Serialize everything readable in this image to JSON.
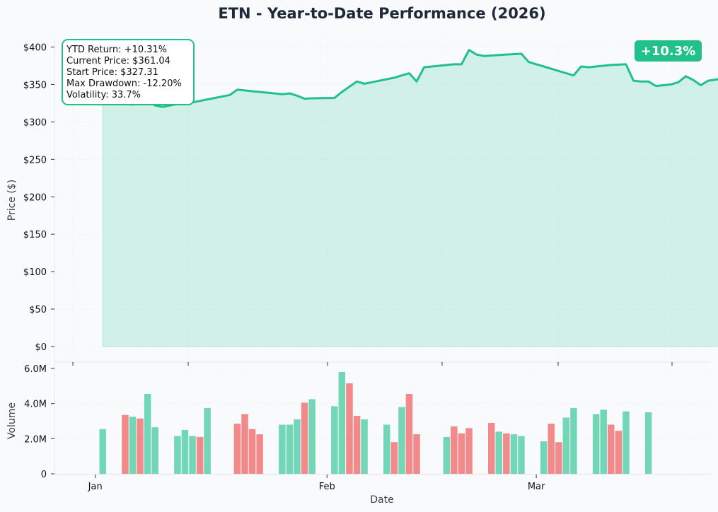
{
  "chart_data": {
    "type": "line",
    "title": "ETN - Year-to-Date Performance (2026)",
    "xlabel": "Date",
    "ylabel": "Price ($)",
    "ylabel_volume": "Volume",
    "ylim": [
      0,
      420
    ],
    "volume_ylim": [
      0,
      6000000
    ],
    "y_ticks": [
      "$0",
      "$50",
      "$100",
      "$150",
      "$200",
      "$250",
      "$300",
      "$350",
      "$400"
    ],
    "y_tick_values": [
      0,
      50,
      100,
      150,
      200,
      250,
      300,
      350,
      400
    ],
    "volume_ticks": [
      "0",
      "2.0M",
      "4.0M",
      "6.0M"
    ],
    "volume_tick_values": [
      0,
      2000000,
      4000000,
      6000000
    ],
    "x_ticks": [
      "Jan",
      "Feb",
      "Mar"
    ],
    "x_tick_dates": [
      "2026-01-01",
      "2026-02-01",
      "2026-03-01"
    ],
    "x_range": [
      "2025-12-29",
      "2026-03-22"
    ],
    "grid": true,
    "series": [
      {
        "color": "#22c08a",
        "points": [
          [
            "2026-01-02",
            327.31
          ],
          [
            "2026-01-05",
            324.5
          ],
          [
            "2026-01-06",
            323.0
          ],
          [
            "2026-01-07",
            330.0
          ],
          [
            "2026-01-08",
            328.0
          ],
          [
            "2026-01-09",
            322.0
          ],
          [
            "2026-01-10",
            320.0
          ],
          [
            "2026-01-12",
            324.0
          ],
          [
            "2026-01-13",
            330.0
          ],
          [
            "2026-01-14",
            326.0
          ],
          [
            "2026-01-15",
            328.0
          ],
          [
            "2026-01-16",
            330.0
          ],
          [
            "2026-01-19",
            336.0
          ],
          [
            "2026-01-20",
            343.0
          ],
          [
            "2026-01-21",
            342.0
          ],
          [
            "2026-01-22",
            341.0
          ],
          [
            "2026-01-23",
            340.0
          ],
          [
            "2026-01-26",
            337.0
          ],
          [
            "2026-01-27",
            338.0
          ],
          [
            "2026-01-28",
            335.0
          ],
          [
            "2026-01-29",
            331.0
          ],
          [
            "2026-01-30",
            331.5
          ],
          [
            "2026-02-02",
            332.0
          ],
          [
            "2026-02-03",
            340.0
          ],
          [
            "2026-02-05",
            354.0
          ],
          [
            "2026-02-06",
            351.0
          ],
          [
            "2026-02-07",
            353.0
          ],
          [
            "2026-02-09",
            357.0
          ],
          [
            "2026-02-10",
            359.0
          ],
          [
            "2026-02-11",
            362.0
          ],
          [
            "2026-02-12",
            365.0
          ],
          [
            "2026-02-13",
            354.0
          ],
          [
            "2026-02-14",
            373.0
          ],
          [
            "2026-02-16",
            375.0
          ],
          [
            "2026-02-17",
            376.0
          ],
          [
            "2026-02-18",
            377.0
          ],
          [
            "2026-02-19",
            377.0
          ],
          [
            "2026-02-20",
            396.0
          ],
          [
            "2026-02-21",
            390.0
          ],
          [
            "2026-02-22",
            388.0
          ],
          [
            "2026-02-25",
            390.0
          ],
          [
            "2026-02-27",
            391.0
          ],
          [
            "2026-02-28",
            380.0
          ],
          [
            "2026-03-01",
            377.0
          ],
          [
            "2026-03-02",
            374.0
          ],
          [
            "2026-03-03",
            371.0
          ],
          [
            "2026-03-06",
            362.0
          ],
          [
            "2026-03-07",
            374.0
          ],
          [
            "2026-03-08",
            373.0
          ],
          [
            "2026-03-09",
            374.0
          ],
          [
            "2026-03-11",
            376.0
          ],
          [
            "2026-03-13",
            377.0
          ],
          [
            "2026-03-14",
            355.0
          ],
          [
            "2026-03-15",
            354.0
          ],
          [
            "2026-03-16",
            354.0
          ],
          [
            "2026-03-17",
            348.0
          ],
          [
            "2026-03-19",
            350.0
          ],
          [
            "2026-03-20",
            353.0
          ],
          [
            "2026-03-21",
            361.0
          ],
          [
            "2026-03-22",
            356.0
          ],
          [
            "2026-03-23",
            349.0
          ],
          [
            "2026-03-24",
            355.0
          ],
          [
            "2026-03-26",
            358.0
          ],
          [
            "2026-03-27",
            361.04
          ]
        ]
      }
    ],
    "volume": {
      "up_color": "#22c08a",
      "down_color": "#ef4444",
      "bars": [
        [
          "2026-01-02",
          2550000,
          "up"
        ],
        [
          "2026-01-05",
          3350000,
          "down"
        ],
        [
          "2026-01-06",
          3250000,
          "up"
        ],
        [
          "2026-01-07",
          3150000,
          "down"
        ],
        [
          "2026-01-08",
          4550000,
          "up"
        ],
        [
          "2026-01-09",
          2650000,
          "up"
        ],
        [
          "2026-01-12",
          2150000,
          "up"
        ],
        [
          "2026-01-13",
          2500000,
          "up"
        ],
        [
          "2026-01-14",
          2150000,
          "up"
        ],
        [
          "2026-01-15",
          2100000,
          "down"
        ],
        [
          "2026-01-16",
          3750000,
          "up"
        ],
        [
          "2026-01-20",
          2850000,
          "down"
        ],
        [
          "2026-01-21",
          3400000,
          "down"
        ],
        [
          "2026-01-22",
          2550000,
          "down"
        ],
        [
          "2026-01-23",
          2250000,
          "down"
        ],
        [
          "2026-01-26",
          2800000,
          "up"
        ],
        [
          "2026-01-27",
          2800000,
          "up"
        ],
        [
          "2026-01-28",
          3100000,
          "up"
        ],
        [
          "2026-01-29",
          4050000,
          "down"
        ],
        [
          "2026-01-30",
          4250000,
          "up"
        ],
        [
          "2026-02-02",
          3850000,
          "up"
        ],
        [
          "2026-02-03",
          5800000,
          "up"
        ],
        [
          "2026-02-04",
          5150000,
          "down"
        ],
        [
          "2026-02-05",
          3300000,
          "down"
        ],
        [
          "2026-02-06",
          3100000,
          "up"
        ],
        [
          "2026-02-09",
          2800000,
          "up"
        ],
        [
          "2026-02-10",
          1800000,
          "down"
        ],
        [
          "2026-02-11",
          3800000,
          "up"
        ],
        [
          "2026-02-12",
          4550000,
          "down"
        ],
        [
          "2026-02-13",
          2250000,
          "down"
        ],
        [
          "2026-02-17",
          2100000,
          "up"
        ],
        [
          "2026-02-18",
          2700000,
          "down"
        ],
        [
          "2026-02-19",
          2300000,
          "down"
        ],
        [
          "2026-02-20",
          2600000,
          "down"
        ],
        [
          "2026-02-23",
          2900000,
          "down"
        ],
        [
          "2026-02-24",
          2400000,
          "up"
        ],
        [
          "2026-02-25",
          2300000,
          "down"
        ],
        [
          "2026-02-26",
          2250000,
          "up"
        ],
        [
          "2026-02-27",
          2150000,
          "up"
        ],
        [
          "2026-03-02",
          1850000,
          "up"
        ],
        [
          "2026-03-03",
          2850000,
          "down"
        ],
        [
          "2026-03-04",
          1800000,
          "down"
        ],
        [
          "2026-03-05",
          3200000,
          "up"
        ],
        [
          "2026-03-06",
          3750000,
          "up"
        ],
        [
          "2026-03-09",
          3400000,
          "up"
        ],
        [
          "2026-03-10",
          3650000,
          "up"
        ],
        [
          "2026-03-11",
          2800000,
          "down"
        ],
        [
          "2026-03-12",
          2450000,
          "down"
        ],
        [
          "2026-03-13",
          3550000,
          "up"
        ],
        [
          "2026-03-16",
          3500000,
          "up"
        ]
      ]
    }
  },
  "stats": {
    "lines": [
      "YTD Return: +10.31%",
      "Current Price: $361.04",
      "Start Price: $327.31",
      "Max Drawdown: -12.20%",
      "Volatility: 33.7%"
    ]
  },
  "badge": {
    "text": "+10.3%",
    "color": "#22c08a"
  }
}
